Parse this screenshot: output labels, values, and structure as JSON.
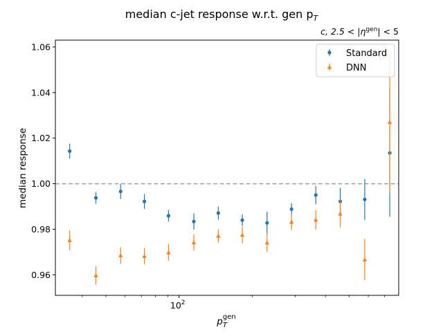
{
  "chart_data": {
    "type": "scatter",
    "title": "median c-jet response w.r.t. gen p",
    "title_sub": "T",
    "annotation": {
      "prefix": "c, 2.5 < |",
      "eta": "η",
      "sup": "gen",
      "suffix": "| < 5"
    },
    "xlabel": {
      "base": "p",
      "sub": "T",
      "sup": "gen"
    },
    "ylabel": "median response",
    "x_scale": "log",
    "xlim": [
      31,
      800
    ],
    "ylim": [
      0.951,
      1.063
    ],
    "x_ticks": [
      {
        "value": 100,
        "base": "10",
        "exp": "2"
      }
    ],
    "y_ticks": [
      {
        "value": 0.96,
        "label": "0.96"
      },
      {
        "value": 0.98,
        "label": "0.98"
      },
      {
        "value": 1.0,
        "label": "1.00"
      },
      {
        "value": 1.02,
        "label": "1.02"
      },
      {
        "value": 1.04,
        "label": "1.04"
      },
      {
        "value": 1.06,
        "label": "1.06"
      }
    ],
    "reference_line": {
      "y": 1.0,
      "style": "dashed",
      "color": "#a0a0a0"
    },
    "grid": false,
    "legend": {
      "position": "top-right"
    },
    "series": [
      {
        "name": "Standard",
        "marker": "circle",
        "color": "#1f77b4",
        "points": [
          {
            "x": 35.5,
            "y": 1.0143,
            "err": 0.0033
          },
          {
            "x": 45.5,
            "y": 0.9938,
            "err": 0.0026
          },
          {
            "x": 57.5,
            "y": 0.9966,
            "err": 0.0033
          },
          {
            "x": 72,
            "y": 0.9922,
            "err": 0.0033
          },
          {
            "x": 90.5,
            "y": 0.9859,
            "err": 0.0026
          },
          {
            "x": 115,
            "y": 0.9834,
            "err": 0.0036
          },
          {
            "x": 145,
            "y": 0.9871,
            "err": 0.0029
          },
          {
            "x": 182,
            "y": 0.984,
            "err": 0.0026
          },
          {
            "x": 230,
            "y": 0.9828,
            "err": 0.0048
          },
          {
            "x": 290,
            "y": 0.9888,
            "err": 0.0026
          },
          {
            "x": 365,
            "y": 0.995,
            "err": 0.004
          },
          {
            "x": 460,
            "y": 0.9922,
            "err": 0.006
          },
          {
            "x": 580,
            "y": 0.9931,
            "err": 0.009
          },
          {
            "x": 735,
            "y": 1.0135,
            "err": 0.028
          }
        ]
      },
      {
        "name": "DNN",
        "marker": "triangle",
        "color": "#ff7f0e",
        "points": [
          {
            "x": 35.5,
            "y": 0.9752,
            "err": 0.0043
          },
          {
            "x": 45.5,
            "y": 0.9597,
            "err": 0.004
          },
          {
            "x": 57.5,
            "y": 0.9685,
            "err": 0.0036
          },
          {
            "x": 72,
            "y": 0.9682,
            "err": 0.0036
          },
          {
            "x": 90.5,
            "y": 0.9698,
            "err": 0.0036
          },
          {
            "x": 115,
            "y": 0.9742,
            "err": 0.0036
          },
          {
            "x": 145,
            "y": 0.9771,
            "err": 0.0029
          },
          {
            "x": 182,
            "y": 0.9775,
            "err": 0.0036
          },
          {
            "x": 230,
            "y": 0.9741,
            "err": 0.004
          },
          {
            "x": 290,
            "y": 0.9832,
            "err": 0.0036
          },
          {
            "x": 365,
            "y": 0.9841,
            "err": 0.0043
          },
          {
            "x": 460,
            "y": 0.9868,
            "err": 0.006
          },
          {
            "x": 580,
            "y": 0.9667,
            "err": 0.009
          },
          {
            "x": 735,
            "y": 1.027,
            "err": 0.031
          }
        ]
      }
    ]
  }
}
